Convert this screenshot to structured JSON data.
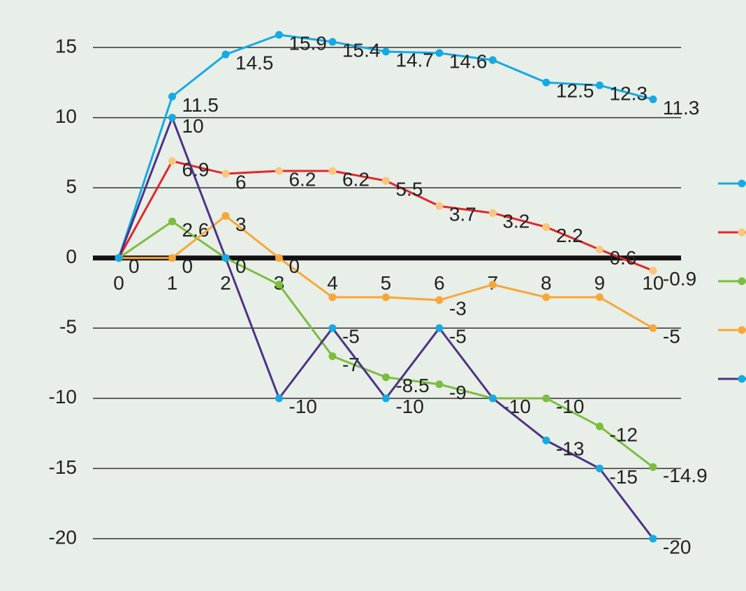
{
  "chart_data": {
    "type": "line",
    "x": [
      0,
      1,
      2,
      3,
      4,
      5,
      6,
      7,
      8,
      9,
      10
    ],
    "xticks": [
      0,
      1,
      2,
      3,
      4,
      5,
      6,
      7,
      8,
      9,
      10
    ],
    "xlim": [
      -0.85,
      10.55
    ],
    "ylim": [
      -20,
      15
    ],
    "yticks": [
      -20,
      -15,
      -10,
      -5,
      0,
      5,
      10,
      15
    ],
    "grid": true,
    "legend": "right",
    "series": [
      {
        "color": "#15aae3",
        "marker_color": "#15aae3",
        "values": [
          0,
          11.5,
          14.5,
          15.9,
          15.4,
          14.7,
          14.6,
          14.1,
          12.5,
          12.3,
          11.3
        ],
        "value_labels": [
          null,
          "11.5",
          "14.5",
          "15.9",
          "15.4",
          "14.7",
          "14.6",
          null,
          "12.5",
          "12.3",
          "11.3"
        ]
      },
      {
        "color": "#e3262b",
        "marker_color": "#fcc57c",
        "values": [
          0,
          6.9,
          6,
          6.2,
          6.2,
          5.5,
          3.7,
          3.2,
          2.2,
          0.6,
          -0.9
        ],
        "value_labels": [
          null,
          "6.9",
          "6",
          "6.2",
          "6.2",
          "5.5",
          "3.7",
          "3.2",
          "2.2",
          "0.6",
          "-0.9"
        ]
      },
      {
        "color": "#7cbd3f",
        "marker_color": "#7cbd3f",
        "values": [
          0,
          2.6,
          0,
          -1.9,
          -7,
          -8.5,
          -9,
          -10,
          -10,
          -12,
          -14.9
        ],
        "value_labels": [
          null,
          "2.6",
          "0",
          null,
          "-7",
          "-8.5",
          "-9",
          "-10",
          "-10",
          "-12",
          "-14.9"
        ]
      },
      {
        "color": "#f7a738",
        "marker_color": "#f7a738",
        "values": [
          0,
          0,
          3,
          0,
          -2.8,
          -2.8,
          -3,
          -1.9,
          -2.8,
          -2.8,
          -5
        ],
        "value_labels": [
          "0",
          "0",
          "3",
          "0",
          null,
          null,
          "-3",
          null,
          null,
          null,
          "-5"
        ]
      },
      {
        "color": "#4b3385",
        "marker_color": "#15aae3",
        "values": [
          0,
          10,
          0,
          -10,
          -5,
          -10,
          -5,
          -10,
          -13,
          -15,
          -20
        ],
        "value_labels": [
          null,
          "10",
          null,
          "-10",
          "-5",
          "-10",
          "-5",
          null,
          "-13",
          "-15",
          "-20"
        ]
      }
    ]
  }
}
